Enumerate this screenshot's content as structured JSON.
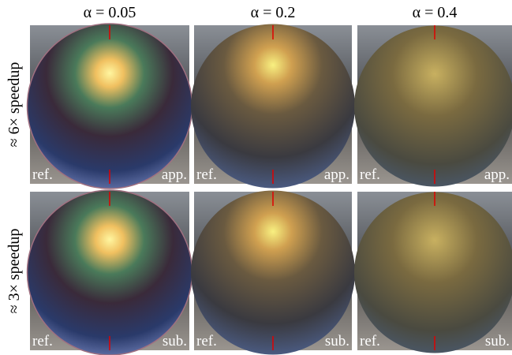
{
  "columns": [
    {
      "label": "α = 0.05"
    },
    {
      "label": "α = 0.2"
    },
    {
      "label": "α = 0.4"
    }
  ],
  "rows": [
    {
      "label": "≈ 6× speedup",
      "method": "app."
    },
    {
      "label": "≈ 3× speedup",
      "method": "sub."
    }
  ],
  "reference_label": "ref."
}
